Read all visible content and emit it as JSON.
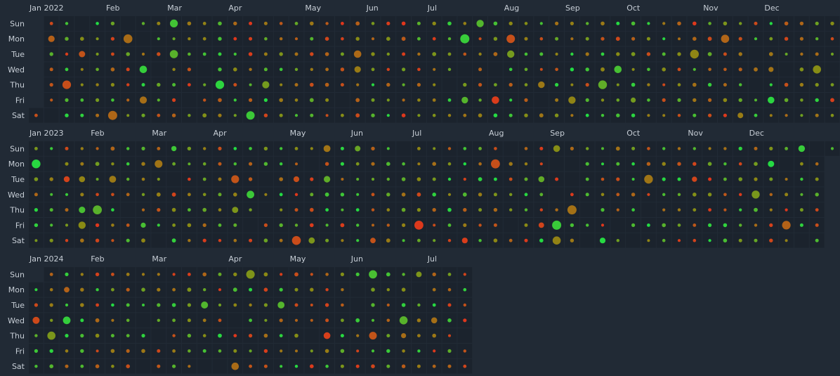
{
  "chart_data": {
    "type": "heatmap",
    "chart_kind": "calendar-heatmap",
    "title": "",
    "day_labels": [
      "Sun",
      "Mon",
      "Tue",
      "Wed",
      "Thu",
      "Fri",
      "Sat"
    ],
    "encoding": "dot size and color per day (red to green)",
    "colors": {
      "low": "#e0361c",
      "mid": "#8a8a14",
      "high": "#22dd44",
      "cell": "#1b232d",
      "background": "#212a35",
      "text": "#c7ced6"
    },
    "years": [
      {
        "year": 2022,
        "start": "2022-01-01",
        "end": "2022-12-31",
        "month_labels": [
          "Jan 2022",
          "Feb",
          "Mar",
          "Apr",
          "May",
          "Jun",
          "Jul",
          "Aug",
          "Sep",
          "Oct",
          "Nov",
          "Dec"
        ]
      },
      {
        "year": 2023,
        "start": "2023-01-01",
        "end": "2023-12-31",
        "month_labels": [
          "Jan 2023",
          "Feb",
          "Mar",
          "Apr",
          "May",
          "Jun",
          "Jul",
          "Aug",
          "Sep",
          "Oct",
          "Nov",
          "Dec"
        ]
      },
      {
        "year": 2024,
        "start": "2024-01-01",
        "end": "2024-07-20",
        "month_labels": [
          "Jan 2024",
          "Feb",
          "Mar",
          "Apr",
          "May",
          "Jun",
          "Jul"
        ]
      }
    ]
  }
}
